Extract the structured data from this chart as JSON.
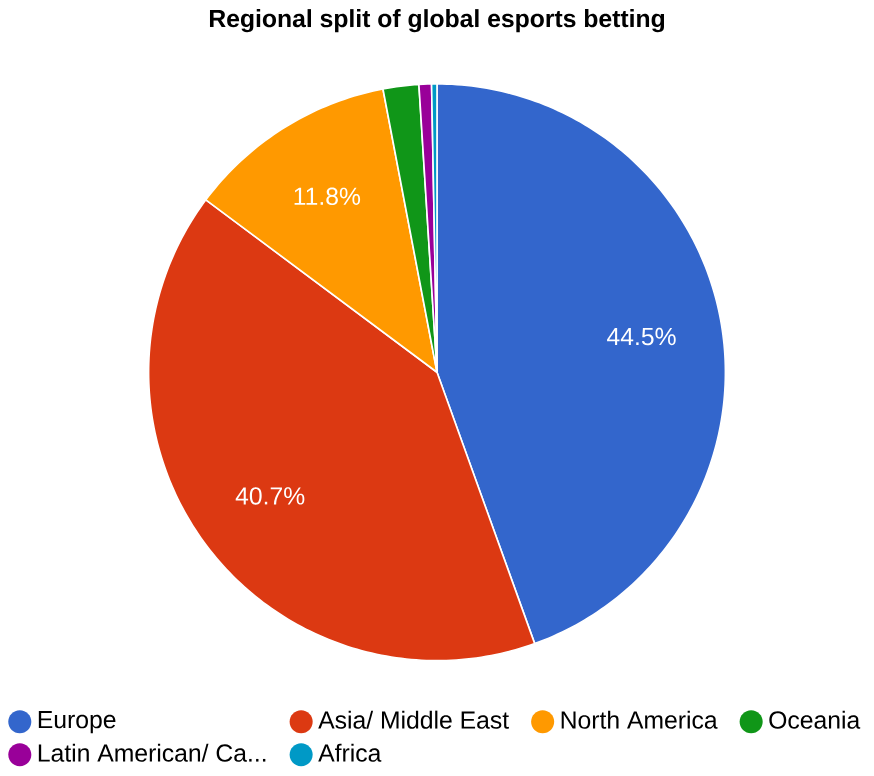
{
  "chart_data": {
    "type": "pie",
    "title": "Regional split of global esports betting",
    "categories": [
      "Europe",
      "Asia/ Middle East",
      "North America",
      "Oceania",
      "Latin American/ Ca...",
      "Africa"
    ],
    "values": [
      44.5,
      40.7,
      11.8,
      2.0,
      0.7,
      0.3
    ],
    "colors": [
      "#3366cc",
      "#dc3912",
      "#ff9900",
      "#109618",
      "#990099",
      "#0099c6"
    ],
    "value_labels": [
      "44.5%",
      "40.7%",
      "11.8%",
      null,
      null,
      null
    ],
    "legend": "bottom"
  }
}
